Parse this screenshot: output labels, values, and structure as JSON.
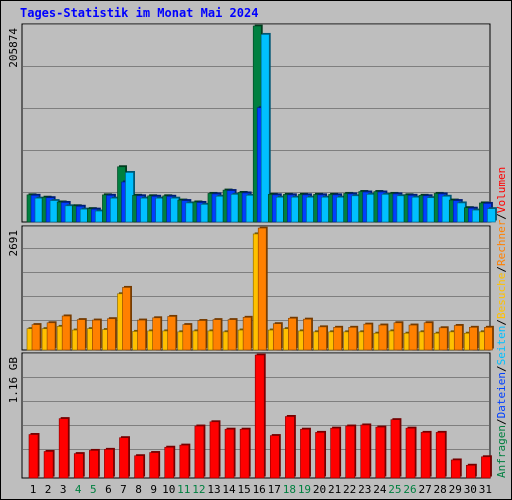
{
  "title": "Tages-Statistik im Monat Mai 2024",
  "legend": [
    {
      "label": "Anfragen",
      "color": "#008040"
    },
    {
      "label": "/",
      "color": "#000000"
    },
    {
      "label": "Dateien",
      "color": "#0040ff"
    },
    {
      "label": "/",
      "color": "#000000"
    },
    {
      "label": "Seiten",
      "color": "#00c0ff"
    },
    {
      "label": "/",
      "color": "#000000"
    },
    {
      "label": "Besuche",
      "color": "#ffc000"
    },
    {
      "label": "/",
      "color": "#000000"
    },
    {
      "label": "Rechner",
      "color": "#ff8000"
    },
    {
      "label": "/",
      "color": "#000000"
    },
    {
      "label": "Volumen",
      "color": "#ff0000"
    }
  ],
  "chart_data": {
    "type": "bar",
    "title": "Tages-Statistik im Monat Mai 2024",
    "categories": [
      "1",
      "2",
      "3",
      "4",
      "5",
      "6",
      "7",
      "8",
      "9",
      "10",
      "11",
      "12",
      "13",
      "14",
      "15",
      "16",
      "17",
      "18",
      "19",
      "20",
      "21",
      "22",
      "23",
      "24",
      "25",
      "26",
      "27",
      "28",
      "29",
      "30",
      "31"
    ],
    "weekend_days": [
      "4",
      "5",
      "11",
      "12",
      "18",
      "19",
      "25",
      "26"
    ],
    "weekend_color": "#008040",
    "weekday_color": "#000000",
    "panels": [
      {
        "axis_label": "205874",
        "ymax": 205874,
        "series": [
          {
            "name": "Anfragen",
            "color": "#008040",
            "values": [
              28500,
              26000,
              21000,
              17000,
              14000,
              28500,
              58000,
              28000,
              27500,
              27500,
              23000,
              21000,
              30000,
              33500,
              31000,
              205874,
              29000,
              29000,
              29000,
              29000,
              29000,
              30000,
              32000,
              32000,
              30000,
              28500,
              28000,
              30000,
              23000,
              15000,
              20000
            ]
          },
          {
            "name": "Dateien",
            "color": "#0040ff",
            "values": [
              28000,
              25500,
              20500,
              16500,
              13500,
              28000,
              42000,
              27500,
              27000,
              27000,
              22500,
              20500,
              29500,
              33000,
              30500,
              120000,
              28500,
              28500,
              28500,
              28500,
              28500,
              29500,
              31500,
              31500,
              29500,
              28000,
              27500,
              29500,
              22500,
              14500,
              19500
            ]
          },
          {
            "name": "Seiten",
            "color": "#00c0ff",
            "values": [
              25000,
              22500,
              17000,
              13500,
              11500,
              25000,
              52000,
              25000,
              25000,
              25000,
              20000,
              18500,
              27000,
              29000,
              28000,
              197000,
              26000,
              26000,
              26000,
              26000,
              26000,
              27500,
              29000,
              29000,
              27500,
              26000,
              25500,
              27000,
              20000,
              12500,
              14000
            ]
          }
        ]
      },
      {
        "axis_label": "2691",
        "ymax": 2691,
        "series": [
          {
            "name": "Besuche",
            "color": "#ffc000",
            "values": [
              470,
              470,
              520,
              440,
              470,
              450,
              1240,
              410,
              420,
              420,
              400,
              420,
              420,
              400,
              440,
              2560,
              440,
              470,
              420,
              400,
              400,
              400,
              400,
              370,
              420,
              370,
              400,
              370,
              400,
              370,
              400
            ]
          },
          {
            "name": "Rechner",
            "color": "#ff8000",
            "values": [
              560,
              600,
              750,
              670,
              660,
              690,
              1380,
              660,
              710,
              740,
              560,
              650,
              670,
              670,
              720,
              2690,
              580,
              700,
              680,
              510,
              500,
              500,
              570,
              550,
              600,
              550,
              600,
              490,
              540,
              500,
              500
            ]
          }
        ]
      },
      {
        "axis_label": "1.16 GB",
        "ymax": 1.16,
        "series": [
          {
            "name": "Volumen",
            "color": "#ff0000",
            "values": [
              0.41,
              0.25,
              0.56,
              0.23,
              0.26,
              0.27,
              0.38,
              0.21,
              0.24,
              0.29,
              0.31,
              0.49,
              0.53,
              0.46,
              0.46,
              1.16,
              0.4,
              0.58,
              0.46,
              0.43,
              0.47,
              0.49,
              0.5,
              0.48,
              0.55,
              0.47,
              0.43,
              0.43,
              0.17,
              0.12,
              0.2
            ]
          }
        ]
      }
    ]
  }
}
